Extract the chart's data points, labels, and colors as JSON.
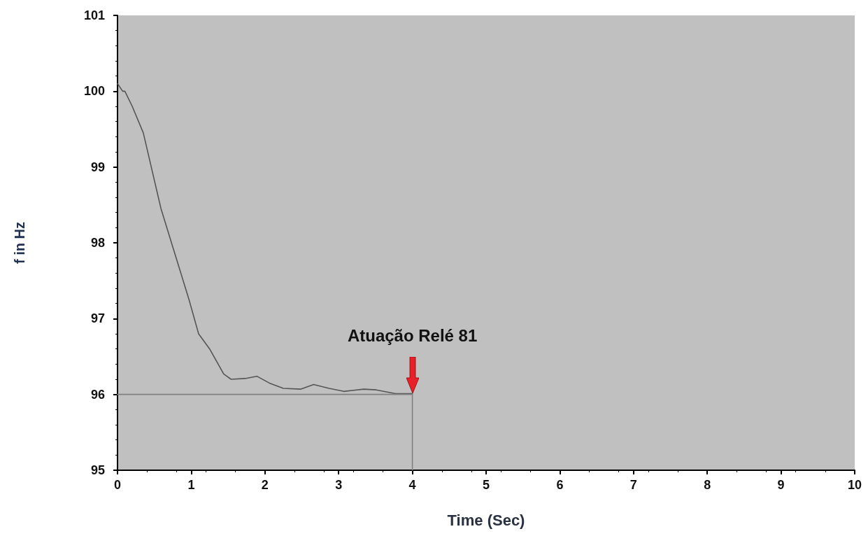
{
  "chart_data": {
    "type": "line",
    "xlabel": "Time (Sec)",
    "ylabel": "f in Hz",
    "xlim": [
      0,
      10
    ],
    "xticks": [
      0,
      1,
      2,
      3,
      4,
      5,
      6,
      7,
      8,
      9,
      10
    ],
    "ylim": [
      95,
      101
    ],
    "yticks": [
      95,
      96,
      97,
      98,
      99,
      100,
      101
    ],
    "grid": false,
    "marker": "none",
    "line_style": "solid",
    "series": [
      {
        "color": "#555555",
        "x": [
          0,
          0.07,
          0.1,
          0.2,
          0.35,
          0.59,
          0.78,
          0.97,
          1.1,
          1.25,
          1.44,
          1.54,
          1.73,
          1.89,
          2.06,
          2.25,
          2.49,
          2.66,
          2.87,
          3.07,
          3.34,
          3.51,
          3.77,
          4.0
        ],
        "values": [
          100.1,
          100.0,
          100.0,
          99.8,
          99.45,
          98.45,
          97.85,
          97.25,
          96.8,
          96.6,
          96.27,
          96.2,
          96.21,
          96.24,
          96.15,
          96.08,
          96.07,
          96.13,
          96.08,
          96.04,
          96.07,
          96.06,
          96.01,
          96.01
        ]
      },
      {
        "color": "#808080",
        "x": [
          0,
          4,
          4
        ],
        "values": [
          96,
          96,
          95
        ]
      }
    ],
    "annotations": [
      {
        "text": "Atuação Relé 81",
        "x": 4,
        "y": 96
      }
    ]
  }
}
